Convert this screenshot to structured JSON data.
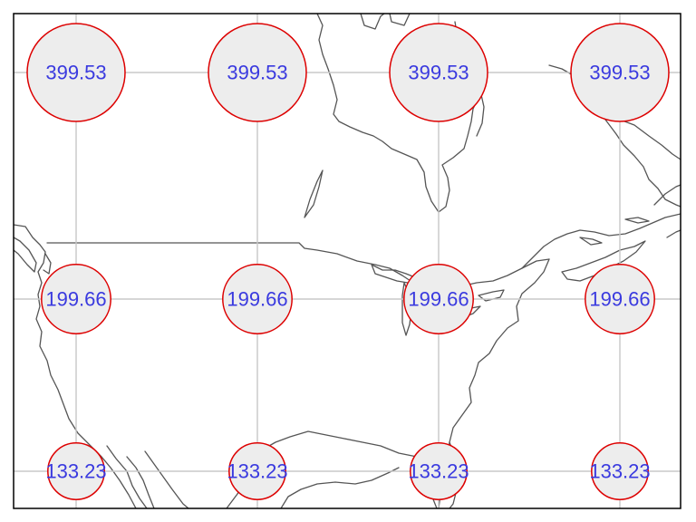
{
  "map": {
    "land_outline_color": "#555555",
    "graticule_color": "#c8c8c8",
    "circle_fill": "#ededed",
    "circle_stroke": "#dd0000",
    "label_color": "#3a3adf",
    "rows": [
      {
        "value": 399.53,
        "label": "399.53",
        "columns": 4
      },
      {
        "value": 199.66,
        "label": "199.66",
        "columns": 4
      },
      {
        "value": 133.23,
        "label": "133.23",
        "columns": 4
      }
    ]
  }
}
